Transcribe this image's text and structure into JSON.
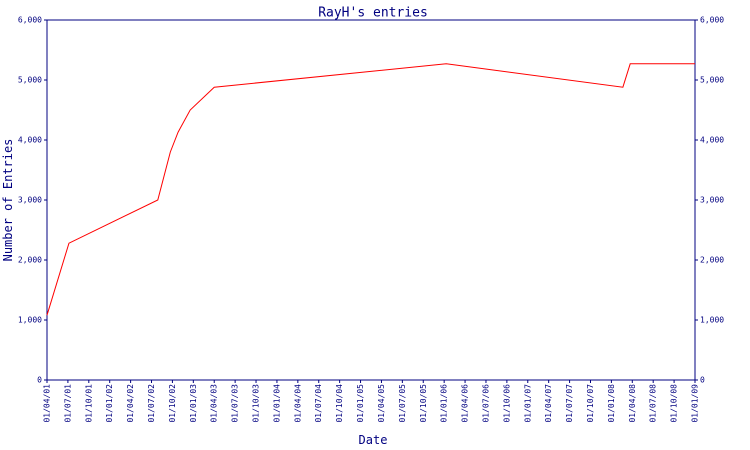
{
  "chart_data": {
    "type": "line",
    "title": "RayH's entries",
    "x_label": "Date",
    "y_label": "Number of Entries",
    "xlim": [
      0,
      31
    ],
    "xticks": [
      {
        "value": 0,
        "label": "01/04/01"
      },
      {
        "value": 1,
        "label": "01/07/01"
      },
      {
        "value": 2,
        "label": "01/10/01"
      },
      {
        "value": 3,
        "label": "01/01/02"
      },
      {
        "value": 4,
        "label": "01/04/02"
      },
      {
        "value": 5,
        "label": "01/07/02"
      },
      {
        "value": 6,
        "label": "01/10/02"
      },
      {
        "value": 7,
        "label": "01/01/03"
      },
      {
        "value": 8,
        "label": "01/04/03"
      },
      {
        "value": 9,
        "label": "01/07/03"
      },
      {
        "value": 10,
        "label": "01/10/03"
      },
      {
        "value": 11,
        "label": "01/01/04"
      },
      {
        "value": 12,
        "label": "01/04/04"
      },
      {
        "value": 13,
        "label": "01/07/04"
      },
      {
        "value": 14,
        "label": "01/10/04"
      },
      {
        "value": 15,
        "label": "01/01/05"
      },
      {
        "value": 16,
        "label": "01/04/05"
      },
      {
        "value": 17,
        "label": "01/07/05"
      },
      {
        "value": 18,
        "label": "01/10/05"
      },
      {
        "value": 19,
        "label": "01/01/06"
      },
      {
        "value": 20,
        "label": "01/04/06"
      },
      {
        "value": 21,
        "label": "01/07/06"
      },
      {
        "value": 22,
        "label": "01/10/06"
      },
      {
        "value": 23,
        "label": "01/01/07"
      },
      {
        "value": 24,
        "label": "01/04/07"
      },
      {
        "value": 25,
        "label": "01/07/07"
      },
      {
        "value": 26,
        "label": "01/10/07"
      },
      {
        "value": 27,
        "label": "01/01/08"
      },
      {
        "value": 28,
        "label": "01/04/08"
      },
      {
        "value": 29,
        "label": "01/07/08"
      },
      {
        "value": 30,
        "label": "01/10/08"
      },
      {
        "value": 31,
        "label": "01/01/09"
      }
    ],
    "ylim": [
      0,
      6000
    ],
    "yticks": [
      0,
      {
        "value": 1000,
        "label": "1,000"
      },
      {
        "value": 2000,
        "label": "2,000"
      },
      {
        "value": 3000,
        "label": "3,000"
      },
      {
        "value": 4000,
        "label": "4,000"
      },
      {
        "value": 5000,
        "label": "5,000"
      },
      {
        "value": 6000,
        "label": "6,000"
      }
    ],
    "y2lim": [
      0,
      6000
    ],
    "y2ticks": [
      0,
      {
        "value": 1000,
        "label": "1,000"
      },
      {
        "value": 2000,
        "label": "2,000"
      },
      {
        "value": 3000,
        "label": "3,000"
      },
      {
        "value": 4000,
        "label": "4,000"
      },
      {
        "value": 5000,
        "label": "5,000"
      },
      {
        "value": 6000,
        "label": "6,000"
      }
    ],
    "grid": false,
    "color": "#ff0000",
    "x": [
      0,
      1.05,
      5.3,
      5.9,
      6.27,
      6.85,
      8.0,
      19.1,
      27.55,
      27.9,
      31
    ],
    "values": [
      1080,
      2280,
      3000,
      3800,
      4130,
      4500,
      4880,
      5270,
      4880,
      5270,
      5270
    ]
  }
}
